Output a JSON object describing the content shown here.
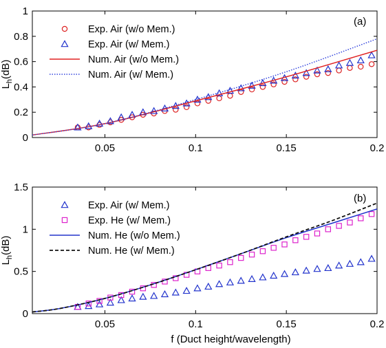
{
  "chart_data": [
    {
      "type": "scatter",
      "panel_label": "(a)",
      "ylabel_main": "L",
      "ylabel_sub": "h",
      "ylabel_unit": "(dB)",
      "xlabel": "",
      "xlim": [
        0.01,
        0.2
      ],
      "ylim": [
        0,
        1
      ],
      "xticks": [
        "0.05",
        "0.1",
        "0.15",
        "0.2"
      ],
      "xtick_values": [
        0.05,
        0.1,
        0.15,
        0.2
      ],
      "yticks": [
        "0",
        "0.2",
        "0.4",
        "0.6",
        "0.8",
        "1"
      ],
      "ytick_values": [
        0,
        0.2,
        0.4,
        0.6,
        0.8,
        1
      ],
      "legend_placement": "top-left",
      "series": [
        {
          "name": "Exp. Air (w/o Mem.)",
          "kind": "marker",
          "marker": "circle",
          "color": "#dd2222",
          "x": [
            0.035,
            0.041,
            0.047,
            0.053,
            0.059,
            0.065,
            0.071,
            0.077,
            0.083,
            0.089,
            0.095,
            0.101,
            0.107,
            0.113,
            0.119,
            0.125,
            0.131,
            0.137,
            0.143,
            0.149,
            0.155,
            0.161,
            0.167,
            0.173,
            0.179,
            0.185,
            0.191,
            0.197
          ],
          "y": [
            0.08,
            0.08,
            0.1,
            0.12,
            0.14,
            0.16,
            0.18,
            0.19,
            0.21,
            0.22,
            0.24,
            0.27,
            0.29,
            0.31,
            0.33,
            0.36,
            0.38,
            0.4,
            0.42,
            0.44,
            0.46,
            0.48,
            0.5,
            0.51,
            0.53,
            0.55,
            0.56,
            0.58
          ]
        },
        {
          "name": "Exp. Air (w/ Mem.)",
          "kind": "marker",
          "marker": "triangle",
          "color": "#2233cc",
          "x": [
            0.035,
            0.041,
            0.047,
            0.053,
            0.059,
            0.065,
            0.071,
            0.077,
            0.083,
            0.089,
            0.095,
            0.101,
            0.107,
            0.113,
            0.119,
            0.125,
            0.131,
            0.137,
            0.143,
            0.149,
            0.155,
            0.161,
            0.167,
            0.173,
            0.179,
            0.185,
            0.191,
            0.197
          ],
          "y": [
            0.08,
            0.09,
            0.11,
            0.13,
            0.16,
            0.18,
            0.2,
            0.21,
            0.23,
            0.25,
            0.27,
            0.3,
            0.32,
            0.35,
            0.37,
            0.39,
            0.41,
            0.43,
            0.45,
            0.47,
            0.49,
            0.51,
            0.53,
            0.54,
            0.57,
            0.59,
            0.61,
            0.65
          ]
        },
        {
          "name": "Num. Air (w/o Mem.)",
          "kind": "line",
          "dash": "solid",
          "color": "#e02020",
          "x": [
            0.01,
            0.05,
            0.1,
            0.15,
            0.2
          ],
          "y": [
            0.02,
            0.11,
            0.29,
            0.48,
            0.69
          ]
        },
        {
          "name": "Num. Air (w/ Mem.)",
          "kind": "line",
          "dash": "dotted",
          "color": "#3344dd",
          "x": [
            0.01,
            0.05,
            0.1,
            0.15,
            0.2
          ],
          "y": [
            0.02,
            0.11,
            0.3,
            0.52,
            0.78
          ]
        }
      ]
    },
    {
      "type": "scatter",
      "panel_label": "(b)",
      "ylabel_main": "L",
      "ylabel_sub": "h",
      "ylabel_unit": "(dB)",
      "xlabel": "f  (Duct height/wavelength)",
      "xlim": [
        0.01,
        0.2
      ],
      "ylim": [
        0,
        1.5
      ],
      "xticks": [
        "0.05",
        "0.1",
        "0.15",
        "0.2"
      ],
      "xtick_values": [
        0.05,
        0.1,
        0.15,
        0.2
      ],
      "yticks": [
        "0",
        "0.5",
        "1",
        "1.5"
      ],
      "ytick_values": [
        0,
        0.5,
        1,
        1.5
      ],
      "legend_placement": "top-left",
      "series": [
        {
          "name": "Exp. Air (w/ Mem.)",
          "kind": "marker",
          "marker": "triangle",
          "color": "#2233cc",
          "x": [
            0.035,
            0.041,
            0.047,
            0.053,
            0.059,
            0.065,
            0.071,
            0.077,
            0.083,
            0.089,
            0.095,
            0.101,
            0.107,
            0.113,
            0.119,
            0.125,
            0.131,
            0.137,
            0.143,
            0.149,
            0.155,
            0.161,
            0.167,
            0.173,
            0.179,
            0.185,
            0.191,
            0.197
          ],
          "y": [
            0.08,
            0.09,
            0.11,
            0.13,
            0.16,
            0.18,
            0.2,
            0.21,
            0.23,
            0.25,
            0.27,
            0.3,
            0.32,
            0.35,
            0.37,
            0.39,
            0.41,
            0.43,
            0.45,
            0.47,
            0.49,
            0.51,
            0.53,
            0.54,
            0.57,
            0.59,
            0.61,
            0.65
          ]
        },
        {
          "name": "Exp. He (w/ Mem.)",
          "kind": "marker",
          "marker": "square",
          "color": "#dd22cc",
          "x": [
            0.035,
            0.041,
            0.047,
            0.053,
            0.059,
            0.065,
            0.071,
            0.077,
            0.083,
            0.089,
            0.095,
            0.101,
            0.107,
            0.113,
            0.119,
            0.125,
            0.131,
            0.137,
            0.143,
            0.149,
            0.155,
            0.161,
            0.167,
            0.173,
            0.179,
            0.185,
            0.191,
            0.197
          ],
          "y": [
            0.08,
            0.12,
            0.15,
            0.19,
            0.22,
            0.26,
            0.3,
            0.34,
            0.38,
            0.42,
            0.46,
            0.5,
            0.54,
            0.57,
            0.61,
            0.66,
            0.7,
            0.74,
            0.78,
            0.82,
            0.87,
            0.91,
            0.95,
            1.0,
            1.04,
            1.08,
            1.13,
            1.18
          ]
        },
        {
          "name": "Num. He (w/o Mem.)",
          "kind": "line",
          "dash": "solid",
          "color": "#2233cc",
          "x": [
            0.01,
            0.025,
            0.05,
            0.075,
            0.1,
            0.125,
            0.15,
            0.175,
            0.2
          ],
          "y": [
            0.02,
            0.06,
            0.18,
            0.34,
            0.52,
            0.71,
            0.9,
            1.07,
            1.24
          ]
        },
        {
          "name": "Num. He (w/ Mem.)",
          "kind": "line",
          "dash": "dashed",
          "color": "#111111",
          "x": [
            0.01,
            0.025,
            0.05,
            0.075,
            0.1,
            0.125,
            0.15,
            0.175,
            0.2
          ],
          "y": [
            0.02,
            0.06,
            0.18,
            0.34,
            0.52,
            0.71,
            0.91,
            1.1,
            1.31
          ]
        }
      ]
    }
  ]
}
